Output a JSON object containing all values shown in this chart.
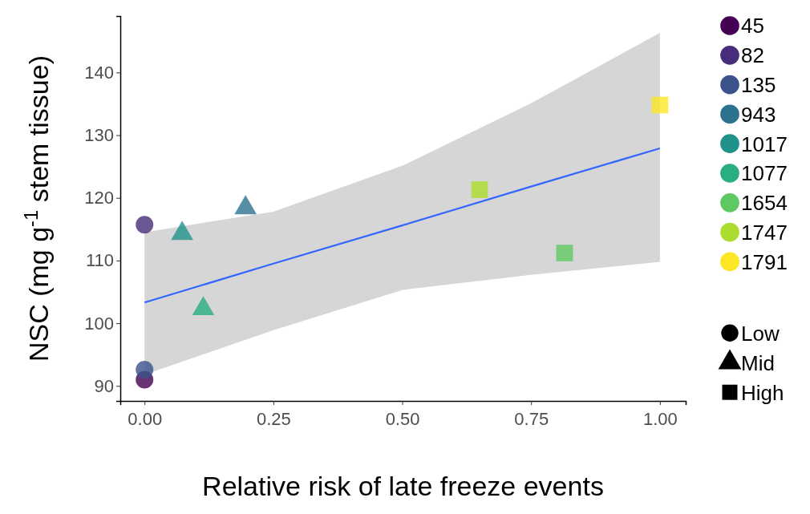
{
  "chart_data": {
    "type": "scatter",
    "xlabel": "Relative risk of late freeze events",
    "ylabel": "NSC (mg g$^{-1}$ stem tissue)",
    "xlim": [
      -0.047,
      1.05
    ],
    "xticks": [
      {
        "value": 0,
        "label": "0.00"
      },
      {
        "value": 0.25,
        "label": "0.25"
      },
      {
        "value": 0.5,
        "label": "0.50"
      },
      {
        "value": 0.75,
        "label": "0.75"
      },
      {
        "value": 1,
        "label": "1.00"
      }
    ],
    "ylim": [
      87.6,
      149
    ],
    "yticks": [
      90,
      100,
      110,
      120,
      130,
      140
    ],
    "grid": false,
    "legend": "right",
    "series": [
      {
        "name": "45",
        "color": "#440154",
        "marker": "circle",
        "x": [
          0
        ],
        "values": [
          91
        ]
      },
      {
        "name": "82",
        "color": "#472d7b",
        "marker": "circle",
        "x": [
          0
        ],
        "values": [
          115.7
        ]
      },
      {
        "name": "135",
        "color": "#3b528b",
        "marker": "circle",
        "x": [
          0
        ],
        "values": [
          92.6
        ]
      },
      {
        "name": "943",
        "color": "#2c728e",
        "marker": "triangle",
        "x": [
          0.196
        ],
        "values": [
          118.4
        ]
      },
      {
        "name": "1017",
        "color": "#21918c",
        "marker": "triangle",
        "x": [
          0.073
        ],
        "values": [
          114.3
        ]
      },
      {
        "name": "1077",
        "color": "#28ae80",
        "marker": "triangle",
        "x": [
          0.114
        ],
        "values": [
          102.3
        ]
      },
      {
        "name": "1654",
        "color": "#5ec962",
        "marker": "square",
        "x": [
          0.815
        ],
        "values": [
          111.2
        ]
      },
      {
        "name": "1747",
        "color": "#addc30",
        "marker": "square",
        "x": [
          0.65
        ],
        "values": [
          121.3
        ]
      },
      {
        "name": "1791",
        "color": "#fde725",
        "marker": "square",
        "x": [
          1
        ],
        "values": [
          134.8
        ]
      },
      {
        "type": "line",
        "color": "#3366ff",
        "marker": "none",
        "x": [
          0,
          0.25,
          0.5,
          0.75,
          1
        ],
        "values": [
          103.3,
          109.5,
          115.6,
          121.8,
          127.9
        ],
        "lower": [
          91.8,
          98.9,
          105.3,
          107.7,
          109.8
        ],
        "upper": [
          114.5,
          117.8,
          125.1,
          135.1,
          146.3
        ]
      },
      {
        "name": "Low",
        "color": "#000000",
        "marker": "circle"
      },
      {
        "name": "Mid",
        "color": "#000000",
        "marker": "triangle"
      },
      {
        "name": "High",
        "color": "#000000",
        "marker": "square"
      }
    ]
  }
}
